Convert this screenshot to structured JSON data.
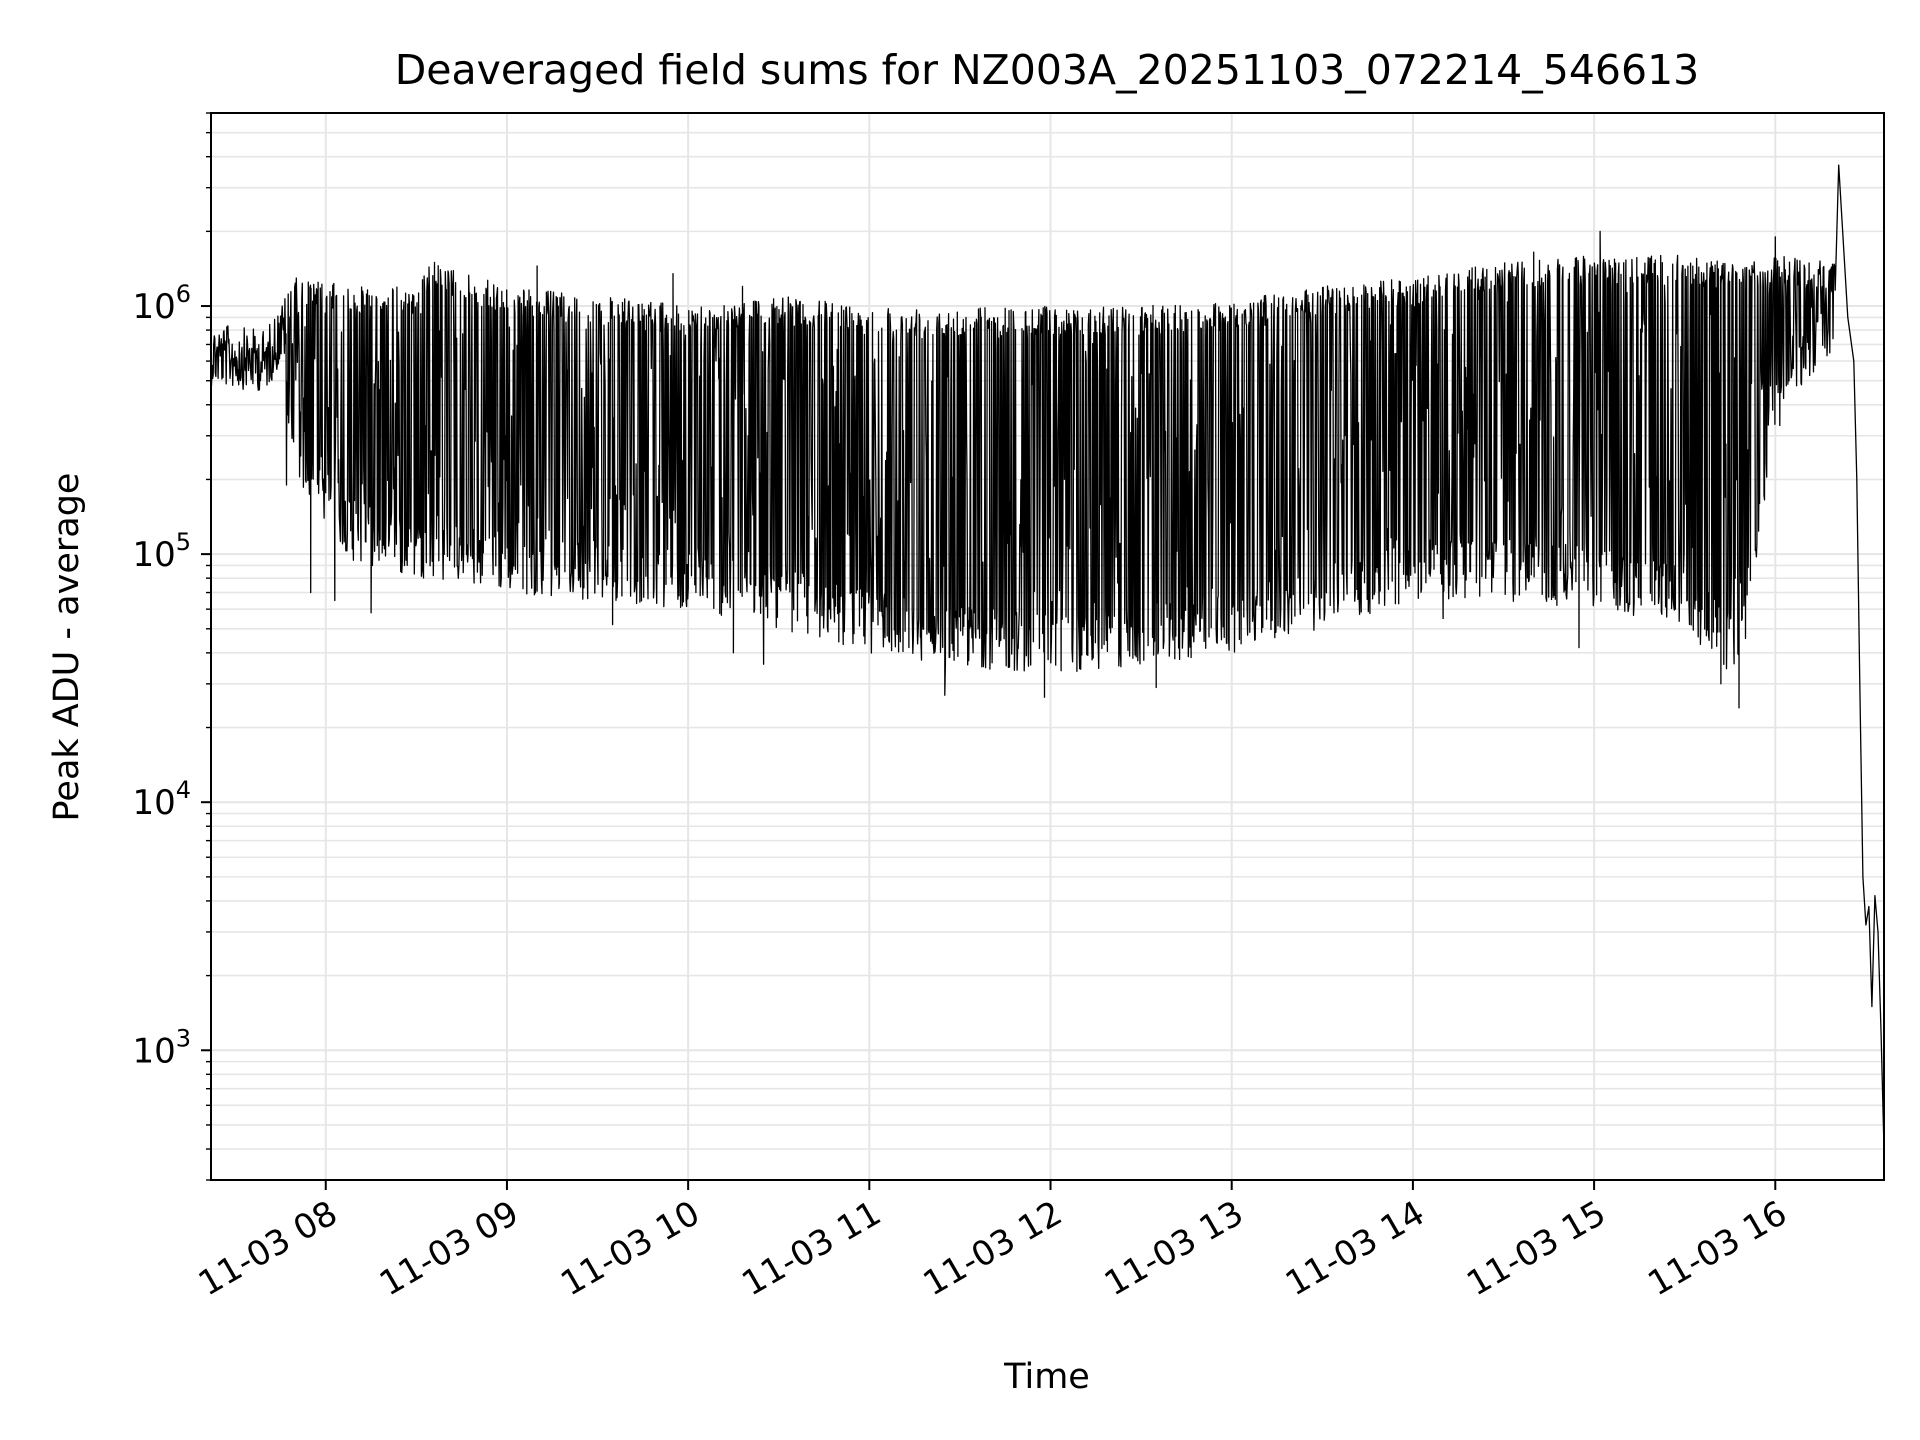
{
  "chart_data": {
    "type": "line",
    "title": "Deaveraged field sums for NZ003A_20251103_072214_546613",
    "xlabel": "Time",
    "ylabel": "Peak ADU - average",
    "y_scale": "log",
    "ylim": [
      300,
      6000000
    ],
    "xlim": [
      "2025-11-03 07:22",
      "2025-11-03 16:36"
    ],
    "grid": true,
    "line_color": "#000000",
    "x_ticks": [
      {
        "at": "2025-11-03 08:00",
        "label": "11-03 08"
      },
      {
        "at": "2025-11-03 09:00",
        "label": "11-03 09"
      },
      {
        "at": "2025-11-03 10:00",
        "label": "11-03 10"
      },
      {
        "at": "2025-11-03 11:00",
        "label": "11-03 11"
      },
      {
        "at": "2025-11-03 12:00",
        "label": "11-03 12"
      },
      {
        "at": "2025-11-03 13:00",
        "label": "11-03 13"
      },
      {
        "at": "2025-11-03 14:00",
        "label": "11-03 14"
      },
      {
        "at": "2025-11-03 15:00",
        "label": "11-03 15"
      },
      {
        "at": "2025-11-03 16:00",
        "label": "11-03 16"
      }
    ],
    "y_ticks": [
      {
        "value": 1000,
        "base": "10",
        "exp": "3"
      },
      {
        "value": 10000,
        "base": "10",
        "exp": "4"
      },
      {
        "value": 100000,
        "base": "10",
        "exp": "5"
      },
      {
        "value": 1000000,
        "base": "10",
        "exp": "6"
      }
    ],
    "series": [
      {
        "name": "",
        "envelope": [
          {
            "t": "2025-11-03 07:22",
            "low": 500000,
            "high": 850000
          },
          {
            "t": "2025-11-03 07:40",
            "low": 500000,
            "high": 800000
          },
          {
            "t": "2025-11-03 07:50",
            "low": 200000,
            "high": 1300000
          },
          {
            "t": "2025-11-03 08:10",
            "low": 90000,
            "high": 1200000
          },
          {
            "t": "2025-11-03 08:30",
            "low": 80000,
            "high": 1200000
          },
          {
            "t": "2025-11-03 08:35",
            "low": 80000,
            "high": 1500000
          },
          {
            "t": "2025-11-03 09:00",
            "low": 70000,
            "high": 1200000
          },
          {
            "t": "2025-11-03 09:30",
            "low": 65000,
            "high": 1100000
          },
          {
            "t": "2025-11-03 10:00",
            "low": 60000,
            "high": 1000000
          },
          {
            "t": "2025-11-03 10:30",
            "low": 50000,
            "high": 1100000
          },
          {
            "t": "2025-11-03 11:00",
            "low": 40000,
            "high": 1000000
          },
          {
            "t": "2025-11-03 11:30",
            "low": 35000,
            "high": 1000000
          },
          {
            "t": "2025-11-03 12:00",
            "low": 33000,
            "high": 1000000
          },
          {
            "t": "2025-11-03 12:30",
            "low": 35000,
            "high": 1000000
          },
          {
            "t": "2025-11-03 13:00",
            "low": 40000,
            "high": 1050000
          },
          {
            "t": "2025-11-03 13:30",
            "low": 50000,
            "high": 1200000
          },
          {
            "t": "2025-11-03 14:00",
            "low": 65000,
            "high": 1300000
          },
          {
            "t": "2025-11-03 14:30",
            "low": 65000,
            "high": 1500000
          },
          {
            "t": "2025-11-03 15:00",
            "low": 60000,
            "high": 1600000
          },
          {
            "t": "2025-11-03 15:30",
            "low": 50000,
            "high": 1600000
          },
          {
            "t": "2025-11-03 15:48",
            "low": 30000,
            "high": 1500000
          },
          {
            "t": "2025-11-03 16:00",
            "low": 300000,
            "high": 1600000
          },
          {
            "t": "2025-11-03 16:20",
            "low": 700000,
            "high": 1500000
          }
        ],
        "dips": [
          {
            "t": "2025-11-03 07:47",
            "value": 190000
          },
          {
            "t": "2025-11-03 07:55",
            "value": 70000
          },
          {
            "t": "2025-11-03 08:03",
            "value": 65000
          },
          {
            "t": "2025-11-03 08:15",
            "value": 58000
          },
          {
            "t": "2025-11-03 09:35",
            "value": 52000
          },
          {
            "t": "2025-11-03 10:15",
            "value": 40000
          },
          {
            "t": "2025-11-03 10:25",
            "value": 36000
          },
          {
            "t": "2025-11-03 11:25",
            "value": 27000
          },
          {
            "t": "2025-11-03 11:58",
            "value": 26500
          },
          {
            "t": "2025-11-03 12:35",
            "value": 29000
          },
          {
            "t": "2025-11-03 14:10",
            "value": 55000
          },
          {
            "t": "2025-11-03 14:55",
            "value": 42000
          },
          {
            "t": "2025-11-03 15:42",
            "value": 30000
          },
          {
            "t": "2025-11-03 15:48",
            "value": 24000
          }
        ],
        "spikes": [
          {
            "t": "2025-11-03 08:36",
            "value": 1500000
          },
          {
            "t": "2025-11-03 09:10",
            "value": 1450000
          },
          {
            "t": "2025-11-03 09:55",
            "value": 1350000
          },
          {
            "t": "2025-11-03 10:18",
            "value": 1200000
          },
          {
            "t": "2025-11-03 14:40",
            "value": 1650000
          },
          {
            "t": "2025-11-03 15:02",
            "value": 2000000
          },
          {
            "t": "2025-11-03 16:00",
            "value": 1900000
          },
          {
            "t": "2025-11-03 16:21",
            "value": 3700000
          }
        ],
        "tail": [
          {
            "t": "2025-11-03 16:24",
            "value": 900000
          },
          {
            "t": "2025-11-03 16:26",
            "value": 600000
          },
          {
            "t": "2025-11-03 16:27",
            "value": 200000
          },
          {
            "t": "2025-11-03 16:28",
            "value": 30000
          },
          {
            "t": "2025-11-03 16:29",
            "value": 5000
          },
          {
            "t": "2025-11-03 16:30",
            "value": 3200
          },
          {
            "t": "2025-11-03 16:31",
            "value": 3800
          },
          {
            "t": "2025-11-03 16:32",
            "value": 1500
          },
          {
            "t": "2025-11-03 16:33",
            "value": 4200
          },
          {
            "t": "2025-11-03 16:34",
            "value": 3000
          },
          {
            "t": "2025-11-03 16:35",
            "value": 1200
          },
          {
            "t": "2025-11-03 16:36",
            "value": 400
          }
        ]
      }
    ]
  }
}
